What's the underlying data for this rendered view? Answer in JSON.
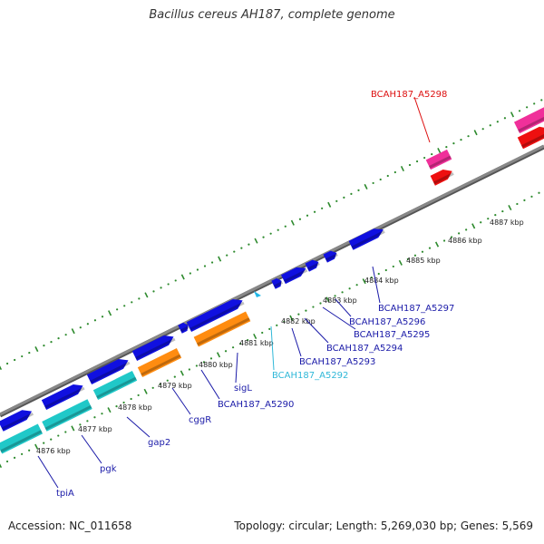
{
  "title": "Bacillus cereus AH187, complete genome",
  "footer": {
    "accession": "Accession: NC_011658",
    "topology": "Topology: circular; Length: 5,269,030 bp; Genes: 5,569"
  },
  "colors": {
    "backbone": "#888888",
    "tick": "#2d8a2d",
    "blue_gene": "#1010e0",
    "cyan_gene": "#20c8c8",
    "orange_gene": "#ff8c10",
    "pink_gene": "#f0309a",
    "red_gene": "#ee1010",
    "label_blue": "#1a1aa8",
    "label_cyan": "#30b8d8",
    "label_red": "#dd1010"
  },
  "tick_labels": [
    "4876 kbp",
    "4877 kbp",
    "4878 kbp",
    "4879 kbp",
    "4880 kbp",
    "4881 kbp",
    "4882 kbp",
    "4883 kbp",
    "4884 kbp",
    "4885 kbp",
    "4886 kbp",
    "4887 kbp"
  ],
  "gene_labels": [
    {
      "text": "tpiA",
      "color": "label_blue"
    },
    {
      "text": "pgk",
      "color": "label_blue"
    },
    {
      "text": "gap2",
      "color": "label_blue"
    },
    {
      "text": "cggR",
      "color": "label_blue"
    },
    {
      "text": "BCAH187_A5290",
      "color": "label_blue"
    },
    {
      "text": "sigL",
      "color": "label_blue"
    },
    {
      "text": "BCAH187_A5292",
      "color": "label_cyan"
    },
    {
      "text": "BCAH187_A5293",
      "color": "label_blue"
    },
    {
      "text": "BCAH187_A5294",
      "color": "label_blue"
    },
    {
      "text": "BCAH187_A5295",
      "color": "label_blue"
    },
    {
      "text": "BCAH187_A5296",
      "color": "label_blue"
    },
    {
      "text": "BCAH187_A5297",
      "color": "label_blue"
    },
    {
      "text": "BCAH187_A5298",
      "color": "label_red"
    }
  ]
}
